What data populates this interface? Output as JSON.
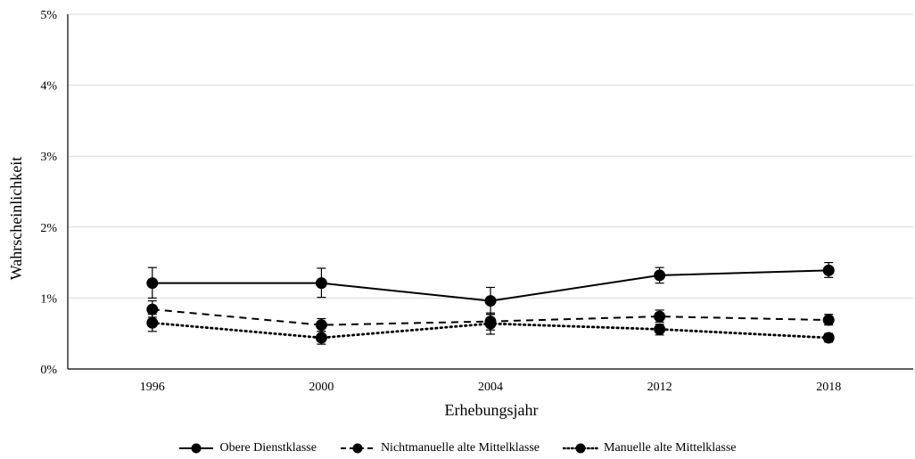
{
  "chart_data": {
    "type": "line",
    "xlabel": "Erhebungsjahr",
    "ylabel": "Wahrscheinlichkeit",
    "categories": [
      "1996",
      "2000",
      "2004",
      "2012",
      "2018"
    ],
    "y_ticks": [
      "0%",
      "1%",
      "2%",
      "3%",
      "4%",
      "5%"
    ],
    "ylim": [
      0,
      5
    ],
    "grid": true,
    "legend_position": "bottom",
    "series": [
      {
        "name": "Obere Dienstklasse",
        "style": "solid",
        "values": [
          1.21,
          1.21,
          0.96,
          1.32,
          1.39
        ],
        "err_low": [
          1.0,
          1.01,
          0.77,
          1.21,
          1.29
        ],
        "err_high": [
          1.43,
          1.42,
          1.15,
          1.43,
          1.5
        ]
      },
      {
        "name": "Nichtmanuelle alte Mittelklasse",
        "style": "dashed",
        "values": [
          0.84,
          0.62,
          0.67,
          0.74,
          0.69
        ],
        "err_low": [
          0.73,
          0.53,
          0.55,
          0.66,
          0.62
        ],
        "err_high": [
          0.96,
          0.71,
          0.79,
          0.83,
          0.77
        ]
      },
      {
        "name": "Manuelle alte Mittelklasse",
        "style": "dotted",
        "values": [
          0.65,
          0.44,
          0.64,
          0.56,
          0.44
        ],
        "err_low": [
          0.53,
          0.35,
          0.49,
          0.48,
          0.38
        ],
        "err_high": [
          0.77,
          0.53,
          0.77,
          0.63,
          0.5
        ]
      }
    ]
  }
}
